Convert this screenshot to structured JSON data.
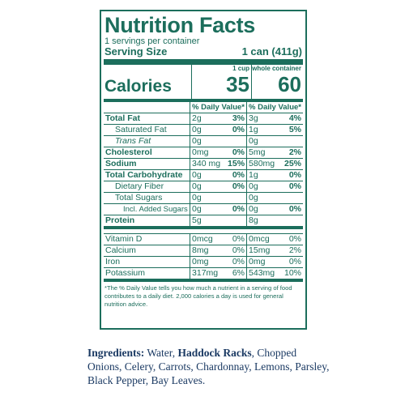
{
  "label": {
    "title": "Nutrition Facts",
    "servings_per_container": "1 servings per container",
    "serving_size_label": "Serving Size",
    "serving_size_value": "1 can (411g)",
    "col1_header": "1 cup",
    "col2_header": "whole container",
    "calories_label": "Calories",
    "calories_col1": "35",
    "calories_col2": "60",
    "dv_header": "% Daily Value*",
    "rows": [
      {
        "name": "Total Fat",
        "a1": "2g",
        "p1": "3%",
        "a2": "3g",
        "p2": "4%"
      },
      {
        "name": "Saturated Fat",
        "a1": "0g",
        "p1": "0%",
        "a2": "1g",
        "p2": "5%"
      },
      {
        "name": "Trans Fat",
        "a1": "0g",
        "p1": "",
        "a2": "0g",
        "p2": ""
      },
      {
        "name": "Cholesterol",
        "a1": "0mg",
        "p1": "0%",
        "a2": "5mg",
        "p2": "2%"
      },
      {
        "name": "Sodium",
        "a1": "340 mg",
        "p1": "15%",
        "a2": "580mg",
        "p2": "25%"
      },
      {
        "name": "Total Carbohydrate",
        "a1": "0g",
        "p1": "0%",
        "a2": "1g",
        "p2": "0%"
      },
      {
        "name": "Dietary Fiber",
        "a1": "0g",
        "p1": "0%",
        "a2": "0g",
        "p2": "0%"
      },
      {
        "name": "Total Sugars",
        "a1": "0g",
        "p1": "",
        "a2": "0g",
        "p2": ""
      },
      {
        "name": "Incl. Added Sugars",
        "a1": "0g",
        "p1": "0%",
        "a2": "0g",
        "p2": "0%"
      },
      {
        "name": "Protein",
        "a1": "5g",
        "p1": "",
        "a2": "8g",
        "p2": ""
      }
    ],
    "vitamins": [
      {
        "name": "Vitamin D",
        "a1": "0mcg",
        "p1": "0%",
        "a2": "0mcg",
        "p2": "0%"
      },
      {
        "name": "Calcium",
        "a1": "8mg",
        "p1": "0%",
        "a2": "15mg",
        "p2": "2%"
      },
      {
        "name": "Iron",
        "a1": "0mg",
        "p1": "0%",
        "a2": "0mg",
        "p2": "0%"
      },
      {
        "name": "Potassium",
        "a1": "317mg",
        "p1": "6%",
        "a2": "543mg",
        "p2": "10%"
      }
    ],
    "footnote": "*The % Daily Value tells you how much a nutrient in a serving of food contributes to a daily diet. 2,000 calories a day is used for general nutrition advice."
  },
  "ingredients": {
    "label": "Ingredients:",
    "text_1": " Water, ",
    "highlight": "Haddock Racks",
    "text_2": ", Chopped Onions, Celery, Carrots, Chardonnay, Lemons, Parsley, Black Pepper, Bay Leaves."
  },
  "colors": {
    "label_green": "#1c6e5c",
    "ingredients_blue": "#1b3a63"
  }
}
